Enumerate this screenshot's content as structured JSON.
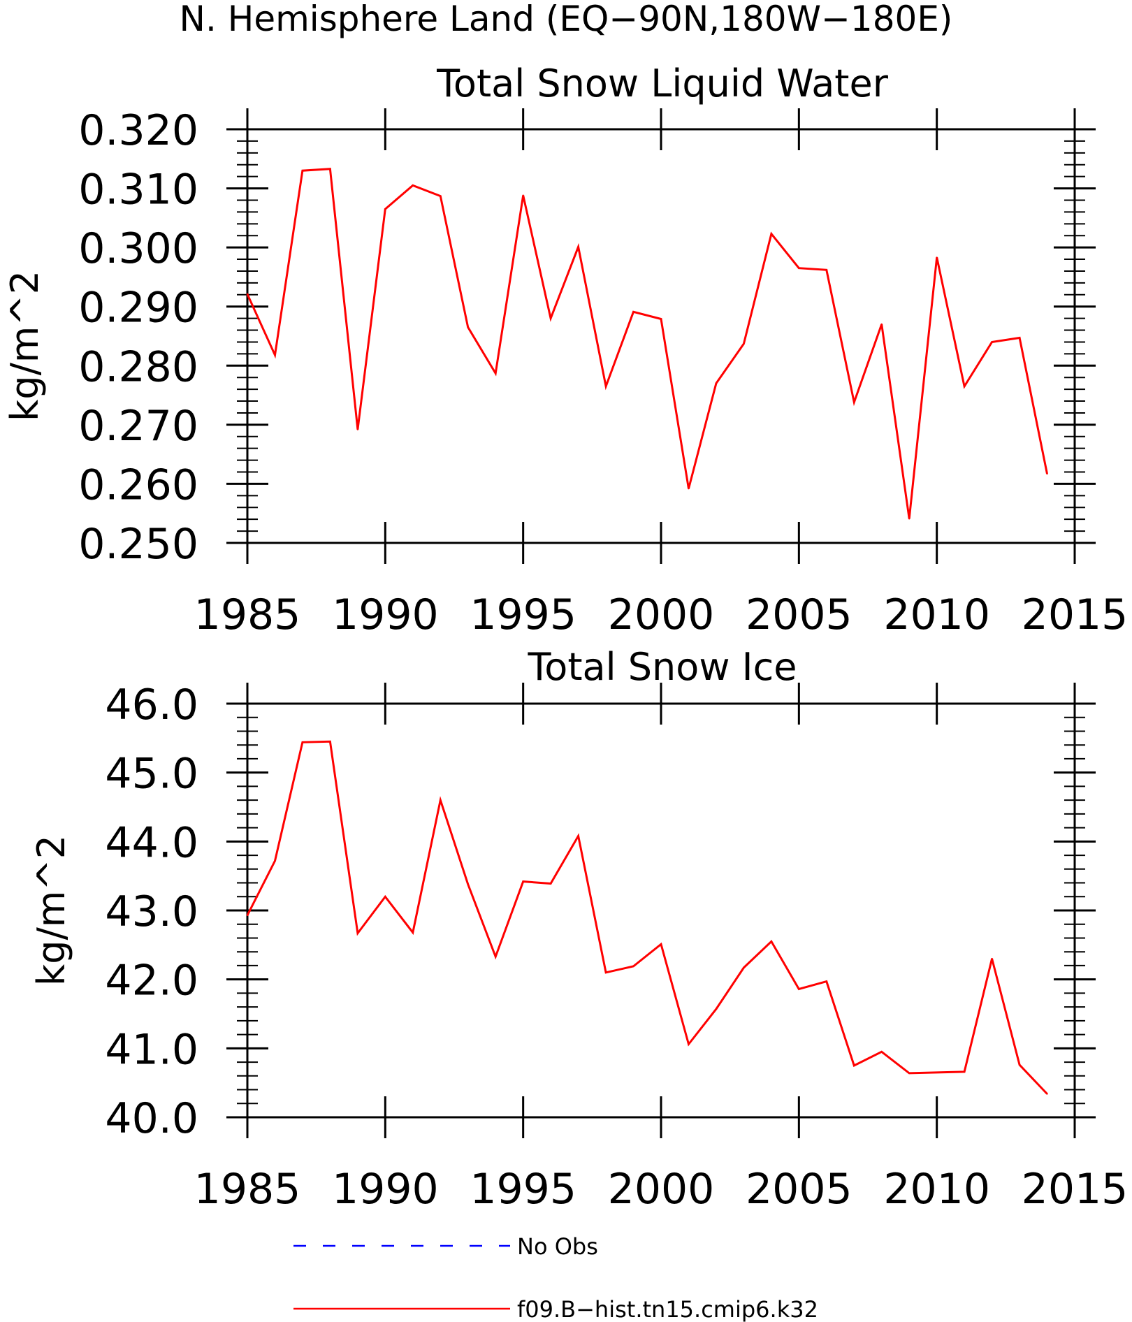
{
  "figure": {
    "title": "N. Hemisphere Land (EQ−90N,180W−180E)"
  },
  "chart_data": [
    {
      "type": "line",
      "title": "Total Snow Liquid Water",
      "xlabel": "",
      "ylabel": "kg/m^2",
      "xlim": [
        1985,
        2015
      ],
      "ylim": [
        0.25,
        0.32
      ],
      "xticks": [
        "1985",
        "1990",
        "1995",
        "2000",
        "2005",
        "2010",
        "2015"
      ],
      "yticks": [
        "0.320",
        "0.310",
        "0.300",
        "0.290",
        "0.280",
        "0.270",
        "0.260",
        "0.250"
      ],
      "grid": false,
      "x": [
        1985,
        1986,
        1987,
        1988,
        1989,
        1990,
        1991,
        1992,
        1993,
        1994,
        1995,
        1996,
        1997,
        1998,
        1999,
        2000,
        2001,
        2002,
        2003,
        2004,
        2005,
        2006,
        2007,
        2008,
        2009,
        2010,
        2011,
        2012,
        2013,
        2014
      ],
      "series": [
        {
          "name": "f09.B−hist.tn15.cmip6.k32",
          "color": "#ff0000",
          "values": [
            0.2921,
            0.2818,
            0.313,
            0.3133,
            0.2692,
            0.3065,
            0.3105,
            0.3087,
            0.2865,
            0.2787,
            0.3088,
            0.288,
            0.3001,
            0.2765,
            0.2891,
            0.2879,
            0.2592,
            0.277,
            0.2837,
            0.3023,
            0.2965,
            0.2962,
            0.2738,
            0.287,
            0.2541,
            0.2983,
            0.2765,
            0.284,
            0.2847,
            0.2617
          ]
        }
      ]
    },
    {
      "type": "line",
      "title": "Total Snow Ice",
      "xlabel": "",
      "ylabel": "kg/m^2",
      "xlim": [
        1985,
        2015
      ],
      "ylim": [
        40.0,
        46.0
      ],
      "xticks": [
        "1985",
        "1990",
        "1995",
        "2000",
        "2005",
        "2010",
        "2015"
      ],
      "yticks": [
        "46.0",
        "45.0",
        "44.0",
        "43.0",
        "42.0",
        "41.0",
        "40.0"
      ],
      "grid": false,
      "x": [
        1985,
        1986,
        1987,
        1988,
        1989,
        1990,
        1991,
        1992,
        1993,
        1994,
        1995,
        1996,
        1997,
        1998,
        1999,
        2000,
        2001,
        2002,
        2003,
        2004,
        2005,
        2006,
        2007,
        2008,
        2009,
        2010,
        2011,
        2012,
        2013,
        2014
      ],
      "series": [
        {
          "name": "f09.B−hist.tn15.cmip6.k32",
          "color": "#ff0000",
          "values": [
            42.93,
            43.72,
            45.44,
            45.45,
            42.67,
            43.2,
            42.68,
            44.6,
            43.38,
            42.33,
            43.42,
            43.39,
            44.08,
            42.1,
            42.19,
            42.51,
            41.06,
            41.57,
            42.17,
            42.55,
            41.86,
            41.97,
            40.75,
            40.95,
            40.64,
            40.65,
            40.66,
            42.3,
            40.76,
            40.34
          ]
        }
      ]
    }
  ],
  "legend": {
    "placement": "bottom-center",
    "entries": [
      {
        "label": "No Obs",
        "color": "#0000ff",
        "style": "dashed"
      },
      {
        "label": "f09.B−hist.tn15.cmip6.k32",
        "color": "#ff0000",
        "style": "solid"
      }
    ]
  }
}
